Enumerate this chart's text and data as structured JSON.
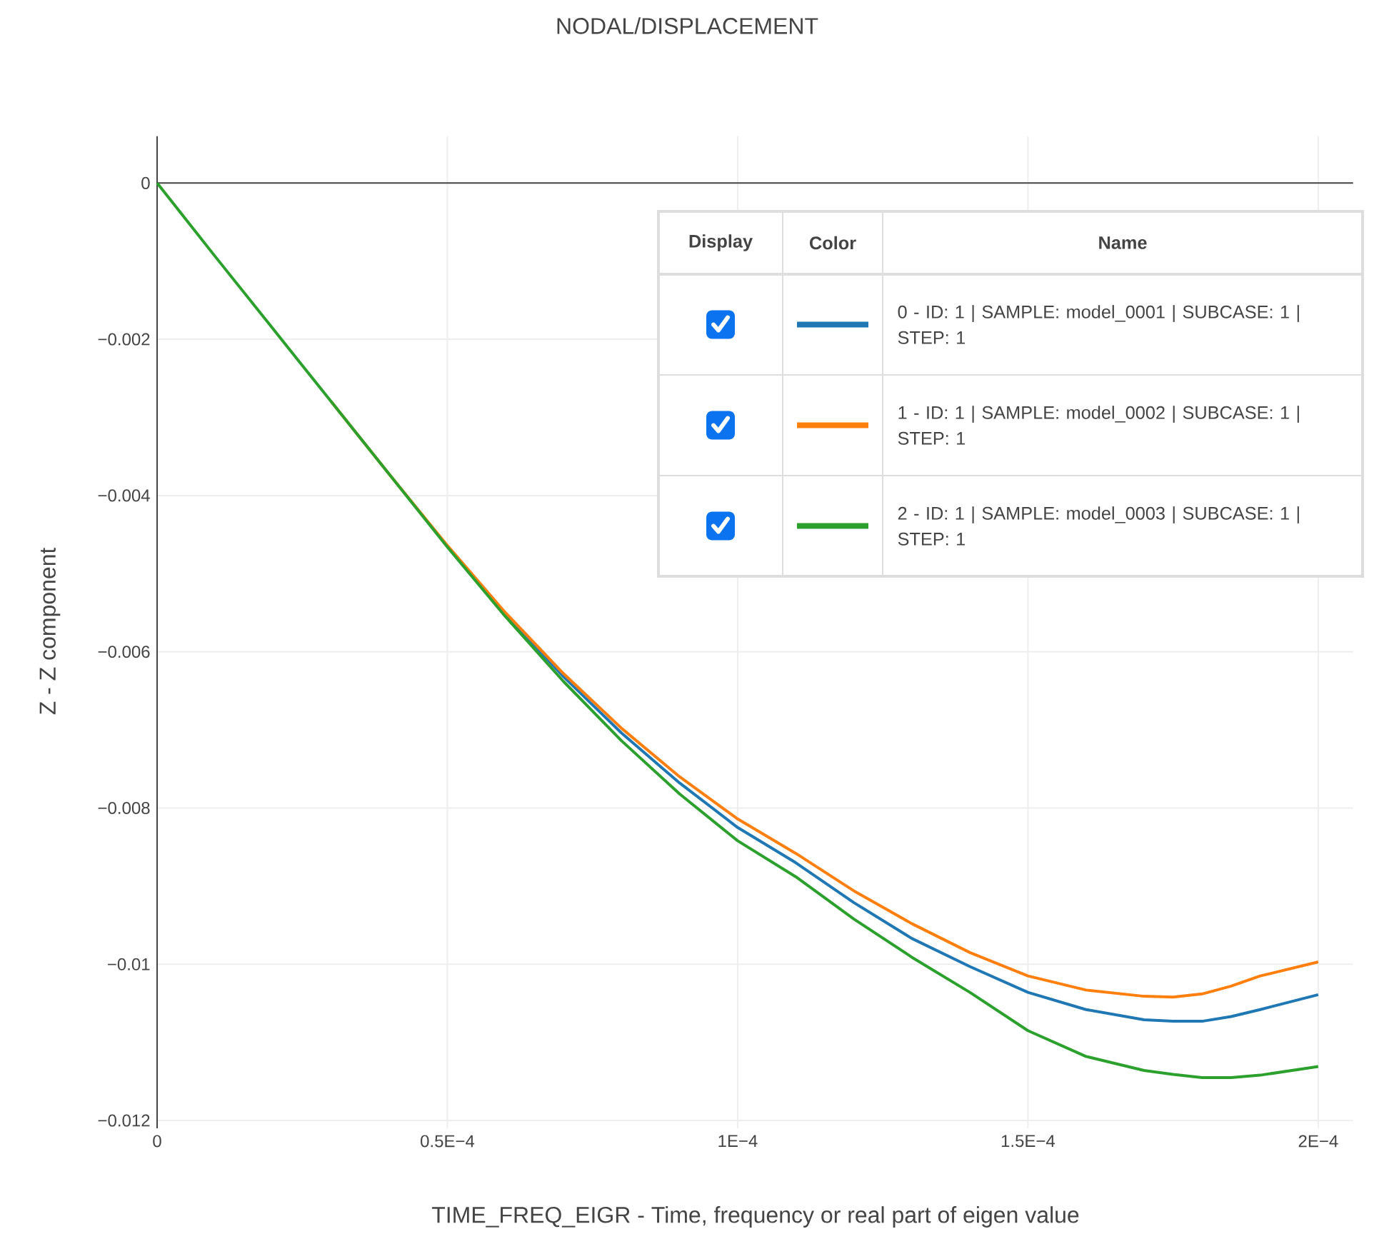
{
  "chart_data": {
    "type": "line",
    "title": "NODAL/DISPLACEMENT",
    "xlabel": "TIME_FREQ_EIGR - Time, frequency or real part of eigen value",
    "ylabel": "Z - Z component",
    "x": [
      0,
      1e-05,
      2e-05,
      3e-05,
      4e-05,
      5e-05,
      6e-05,
      7e-05,
      8e-05,
      9e-05,
      0.0001,
      0.00011,
      0.00012,
      0.00013,
      0.00014,
      0.00015,
      0.00016,
      0.00017,
      0.000175,
      0.00018,
      0.000185,
      0.00019,
      0.0002
    ],
    "series": [
      {
        "name": "0 - ID: 1 | SAMPLE: model_0001 | SUBCASE: 1 | STEP: 1",
        "color": "#1f77b4",
        "values": [
          null,
          null,
          null,
          null,
          null,
          -0.00465,
          -0.00552,
          -0.00632,
          -0.00704,
          -0.00768,
          -0.00825,
          -0.0087,
          -0.00921,
          -0.00967,
          -0.01003,
          -0.01036,
          -0.01058,
          -0.01071,
          -0.01073,
          -0.01073,
          -0.01067,
          -0.01058,
          -0.01039
        ]
      },
      {
        "name": "1 - ID: 1 | SAMPLE: model_0002 | SUBCASE: 1 | STEP: 1",
        "color": "#ff7f0e",
        "values": [
          null,
          null,
          null,
          -0.0028,
          -0.00373,
          -0.00464,
          -0.0055,
          -0.00628,
          -0.00698,
          -0.0076,
          -0.00814,
          -0.00858,
          -0.00906,
          -0.00948,
          -0.00985,
          -0.01015,
          -0.01033,
          -0.01041,
          -0.01042,
          -0.01038,
          -0.01028,
          -0.01015,
          -0.00997
        ]
      },
      {
        "name": "2 - ID: 1 | SAMPLE: model_0003 | SUBCASE: 1 | STEP: 1",
        "color": "#2ca02c",
        "values": [
          0,
          -0.00094,
          -0.00187,
          -0.0028,
          -0.00373,
          -0.00466,
          -0.00555,
          -0.00638,
          -0.00714,
          -0.00782,
          -0.00842,
          -0.00888,
          -0.00942,
          -0.00991,
          -0.01036,
          -0.01085,
          -0.01118,
          -0.01136,
          -0.01141,
          -0.01145,
          -0.01145,
          -0.01142,
          -0.01131
        ]
      }
    ],
    "xlim": [
      0,
      0.000206
    ],
    "ylim": [
      -0.0121,
      0.0006
    ],
    "xticks": [
      0,
      {
        "value": 5e-05,
        "label": "0.5E−4"
      },
      {
        "value": 0.0001,
        "label": "1E−4"
      },
      {
        "value": 0.00015,
        "label": "1.5E−4"
      },
      {
        "value": 0.0002,
        "label": "2E−4"
      }
    ],
    "yticks": [
      {
        "value": -0.012,
        "label": "−0.012"
      },
      {
        "value": -0.01,
        "label": "−0.01"
      },
      {
        "value": -0.008,
        "label": "−0.008"
      },
      {
        "value": -0.006,
        "label": "−0.006"
      },
      {
        "value": -0.004,
        "label": "−0.004"
      },
      {
        "value": -0.002,
        "label": "−0.002"
      },
      0
    ],
    "ref_lines": [
      {
        "axis": "y",
        "value": 0,
        "color": "#444444"
      }
    ],
    "annotations": [
      "Display",
      "Color",
      "Name"
    ],
    "grid": true,
    "legend": "top right",
    "line_style": "solid"
  }
}
